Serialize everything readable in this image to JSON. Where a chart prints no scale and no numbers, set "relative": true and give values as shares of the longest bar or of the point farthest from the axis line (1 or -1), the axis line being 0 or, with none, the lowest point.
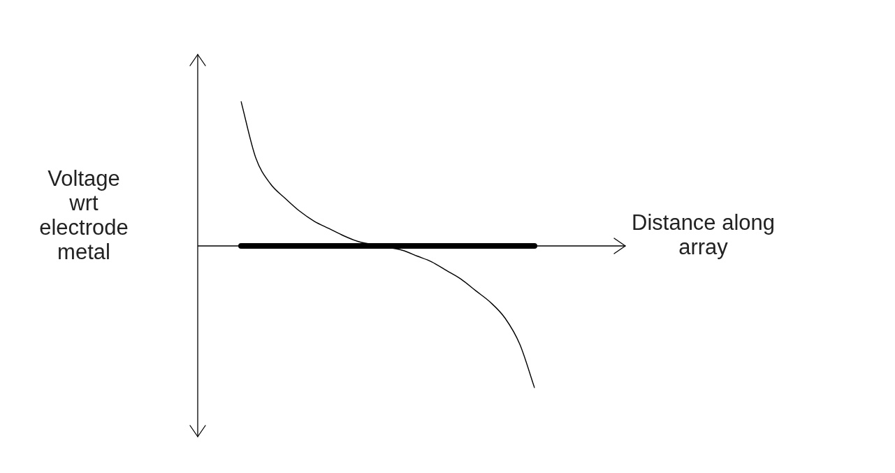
{
  "chart_data": {
    "type": "line",
    "relative": true,
    "xlabel": "Distance along\narray",
    "ylabel": "Voltage\nwrt\nelectrode\nmetal",
    "legend": false,
    "categories": [
      null,
      null,
      null,
      null,
      null,
      null,
      null,
      null,
      null,
      null,
      null,
      null,
      null,
      null,
      null,
      null,
      null,
      null,
      null,
      null,
      null
    ],
    "series": [
      {
        "color": "#000000",
        "values": [
          0,
          0,
          0,
          0,
          0,
          0,
          0,
          0,
          0,
          0,
          0,
          0,
          0,
          0,
          0,
          0,
          0,
          0,
          0,
          0,
          0
        ]
      },
      {
        "color": "#000000",
        "values": [
          1.0,
          0.61,
          0.43,
          0.33,
          0.24,
          0.17,
          0.12,
          0.07,
          0.03,
          0.01,
          -0.01,
          -0.03,
          -0.07,
          -0.11,
          -0.17,
          -0.23,
          -0.31,
          -0.39,
          -0.5,
          -0.68,
          -0.98
        ]
      }
    ]
  }
}
